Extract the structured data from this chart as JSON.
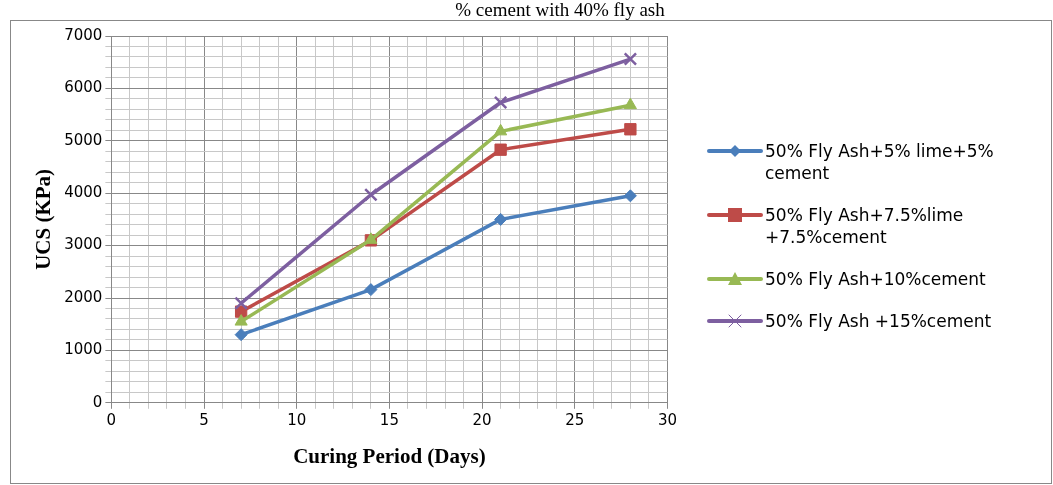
{
  "chart_data": {
    "type": "line",
    "title": "% cement with 40% fly ash",
    "xlabel": "Curing Period (Days)",
    "ylabel": "UCS (KPa)",
    "x": [
      7,
      14,
      21,
      28
    ],
    "series": [
      {
        "name": "50% Fly Ash+5% lime+5% cement",
        "color": "#4a7ebb",
        "marker": "diamond",
        "values": [
          1300,
          2160,
          3500,
          3950
        ]
      },
      {
        "name": "50% Fly Ash+7.5%lime +7.5%cement",
        "color": "#be4b48",
        "marker": "square",
        "values": [
          1740,
          3100,
          4830,
          5220
        ]
      },
      {
        "name": "50% Fly Ash+10%cement",
        "color": "#98b954",
        "marker": "triangle",
        "values": [
          1550,
          3110,
          5180,
          5680
        ]
      },
      {
        "name": "50% Fly Ash +15%cement",
        "color": "#7d5fa0",
        "marker": "cross",
        "values": [
          1900,
          3970,
          5730,
          6560
        ]
      }
    ],
    "xlim": [
      0,
      30
    ],
    "xticks": [
      0,
      {
        "value": 1,
        "label": null
      },
      {
        "value": 2,
        "label": null
      },
      {
        "value": 3,
        "label": null
      },
      {
        "value": 4,
        "label": null
      },
      5,
      {
        "value": 6,
        "label": null
      },
      {
        "value": 7,
        "label": null
      },
      {
        "value": 8,
        "label": null
      },
      {
        "value": 9,
        "label": null
      },
      10,
      {
        "value": 11,
        "label": null
      },
      {
        "value": 12,
        "label": null
      },
      {
        "value": 13,
        "label": null
      },
      {
        "value": 14,
        "label": null
      },
      15,
      {
        "value": 16,
        "label": null
      },
      {
        "value": 17,
        "label": null
      },
      {
        "value": 18,
        "label": null
      },
      {
        "value": 19,
        "label": null
      },
      20,
      {
        "value": 21,
        "label": null
      },
      {
        "value": 22,
        "label": null
      },
      {
        "value": 23,
        "label": null
      },
      {
        "value": 24,
        "label": null
      },
      25,
      {
        "value": 26,
        "label": null
      },
      {
        "value": 27,
        "label": null
      },
      {
        "value": 28,
        "label": null
      },
      {
        "value": 29,
        "label": null
      },
      30
    ],
    "ylim": [
      0,
      7000
    ],
    "yticks": [
      0,
      {
        "value": 200,
        "label": null
      },
      {
        "value": 400,
        "label": null
      },
      {
        "value": 600,
        "label": null
      },
      {
        "value": 800,
        "label": null
      },
      1000,
      {
        "value": 1200,
        "label": null
      },
      {
        "value": 1400,
        "label": null
      },
      {
        "value": 1600,
        "label": null
      },
      {
        "value": 1800,
        "label": null
      },
      2000,
      {
        "value": 2200,
        "label": null
      },
      {
        "value": 2400,
        "label": null
      },
      {
        "value": 2600,
        "label": null
      },
      {
        "value": 2800,
        "label": null
      },
      3000,
      {
        "value": 3200,
        "label": null
      },
      {
        "value": 3400,
        "label": null
      },
      {
        "value": 3600,
        "label": null
      },
      {
        "value": 3800,
        "label": null
      },
      4000,
      {
        "value": 4200,
        "label": null
      },
      {
        "value": 4400,
        "label": null
      },
      {
        "value": 4600,
        "label": null
      },
      {
        "value": 4800,
        "label": null
      },
      5000,
      {
        "value": 5200,
        "label": null
      },
      {
        "value": 5400,
        "label": null
      },
      {
        "value": 5600,
        "label": null
      },
      {
        "value": 5800,
        "label": null
      },
      6000,
      {
        "value": 6200,
        "label": null
      },
      {
        "value": 6400,
        "label": null
      },
      {
        "value": 6600,
        "label": null
      },
      {
        "value": 6800,
        "label": null
      },
      7000
    ],
    "grid": true,
    "legend": "right",
    "line_style": "solid"
  }
}
